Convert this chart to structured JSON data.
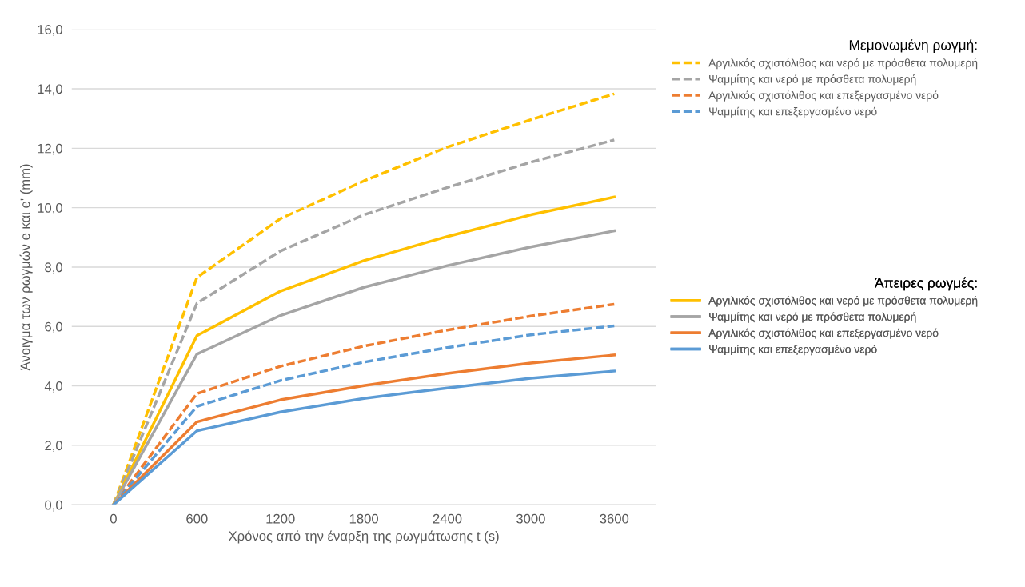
{
  "chart_data": {
    "type": "line",
    "xlabel": "Χρόνος από την έναρξη της ρωγμάτωσης t (s)",
    "ylabel": "Άνοιγμα των ρωγμών e και e' (mm)",
    "categories": [
      "0",
      "600",
      "1200",
      "1800",
      "2400",
      "3000",
      "3600"
    ],
    "annotations": [
      "Μεμονωμένη ρωγμή:",
      "Άπειρες ρωγμές:"
    ],
    "series": [
      {
        "name": "Αργιλικός σχιστόλιθος και νερό με πρόσθετα πολυμερή",
        "color": "#ffc000",
        "line_style": "dashed",
        "values": [
          0,
          7.65,
          9.63,
          10.9,
          12.04,
          12.96,
          13.83
        ]
      },
      {
        "name": "Ψαμμίτης και νερό με πρόσθετα πολυμερή",
        "color": "#a5a5a5",
        "line_style": "dashed",
        "values": [
          0,
          6.78,
          8.54,
          9.76,
          10.68,
          11.53,
          12.28
        ]
      },
      {
        "name": "Αργιλικός σχιστόλιθος και επεξεργασμένο νερό",
        "color": "#ed7d31",
        "line_style": "dashed",
        "values": [
          0,
          3.74,
          4.66,
          5.34,
          5.88,
          6.35,
          6.75
        ]
      },
      {
        "name": "Ψαμμίτης και επεξεργασμένο νερό",
        "color": "#5b9bd5",
        "line_style": "dashed",
        "values": [
          0,
          3.31,
          4.18,
          4.8,
          5.29,
          5.72,
          6.02
        ]
      },
      {
        "name": "Αργιλικός σχιστόλιθος και νερό με πρόσθετα πολυμερή",
        "color": "#ffc000",
        "line_style": "solid",
        "values": [
          0,
          5.69,
          7.19,
          8.22,
          9.03,
          9.76,
          10.36
        ]
      },
      {
        "name": "Ψαμμίτης και νερό με πρόσθετα πολυμερή",
        "color": "#a5a5a5",
        "line_style": "solid",
        "values": [
          0,
          5.07,
          6.37,
          7.32,
          8.05,
          8.68,
          9.22
        ]
      },
      {
        "name": "Αργιλικός σχιστόλιθος και επεξεργασμένο νερό",
        "color": "#ed7d31",
        "line_style": "solid",
        "values": [
          0,
          2.79,
          3.53,
          4.01,
          4.42,
          4.77,
          5.04
        ]
      },
      {
        "name": "Ψαμμίτης και επεξεργασμένο νερό",
        "color": "#5b9bd5",
        "line_style": "solid",
        "values": [
          0,
          2.49,
          3.12,
          3.58,
          3.93,
          4.26,
          4.5
        ]
      }
    ],
    "ylim": [
      0,
      16
    ],
    "yticks": [
      {
        "value": 0,
        "label": "0,0"
      },
      {
        "value": 2,
        "label": "2,0"
      },
      {
        "value": 4,
        "label": "4,0"
      },
      {
        "value": 6,
        "label": "6,0"
      },
      {
        "value": 8,
        "label": "8,0"
      },
      {
        "value": 10,
        "label": "10,0"
      },
      {
        "value": 12,
        "label": "12,0"
      },
      {
        "value": 14,
        "label": "14,0"
      },
      {
        "value": 16,
        "label": "16,0"
      }
    ],
    "grid": "y",
    "legend": "right"
  }
}
